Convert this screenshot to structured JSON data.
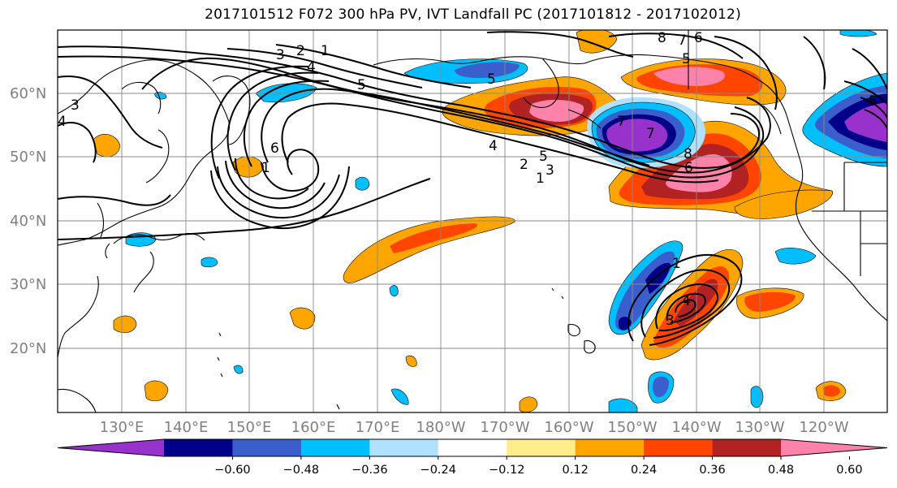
{
  "title": "2017101512 F072 300 hPa PV, IVT Landfall PC (2017101812 - 2017102012)",
  "map": {
    "lon_labels": [
      "130°E",
      "140°E",
      "150°E",
      "160°E",
      "170°E",
      "180°W",
      "170°W",
      "160°W",
      "150°W",
      "140°W",
      "130°W",
      "120°W"
    ],
    "lat_labels": [
      "60°N",
      "50°N",
      "40°N",
      "30°N",
      "20°N"
    ],
    "contour_labels": [
      "3",
      "2",
      "1",
      "4",
      "5",
      "3",
      "4",
      "6",
      "1",
      "5",
      "4",
      "3",
      "2",
      "1",
      "6",
      "8",
      "7",
      "8",
      "6",
      "7",
      "5",
      "1",
      "4",
      "3",
      "5",
      "7",
      "5"
    ]
  },
  "colorbar": {
    "colors": [
      "#9932cc",
      "#000088",
      "#3a5fcd",
      "#00bfff",
      "#b0e2ff",
      "#ffffff",
      "#ffec8b",
      "#ffa500",
      "#ff4500",
      "#b22222",
      "#ff82ab"
    ],
    "tick_labels": [
      "−0.60",
      "−0.48",
      "−0.36",
      "−0.24",
      "−0.12",
      "0.12",
      "0.24",
      "0.36",
      "0.48",
      "0.60"
    ]
  }
}
